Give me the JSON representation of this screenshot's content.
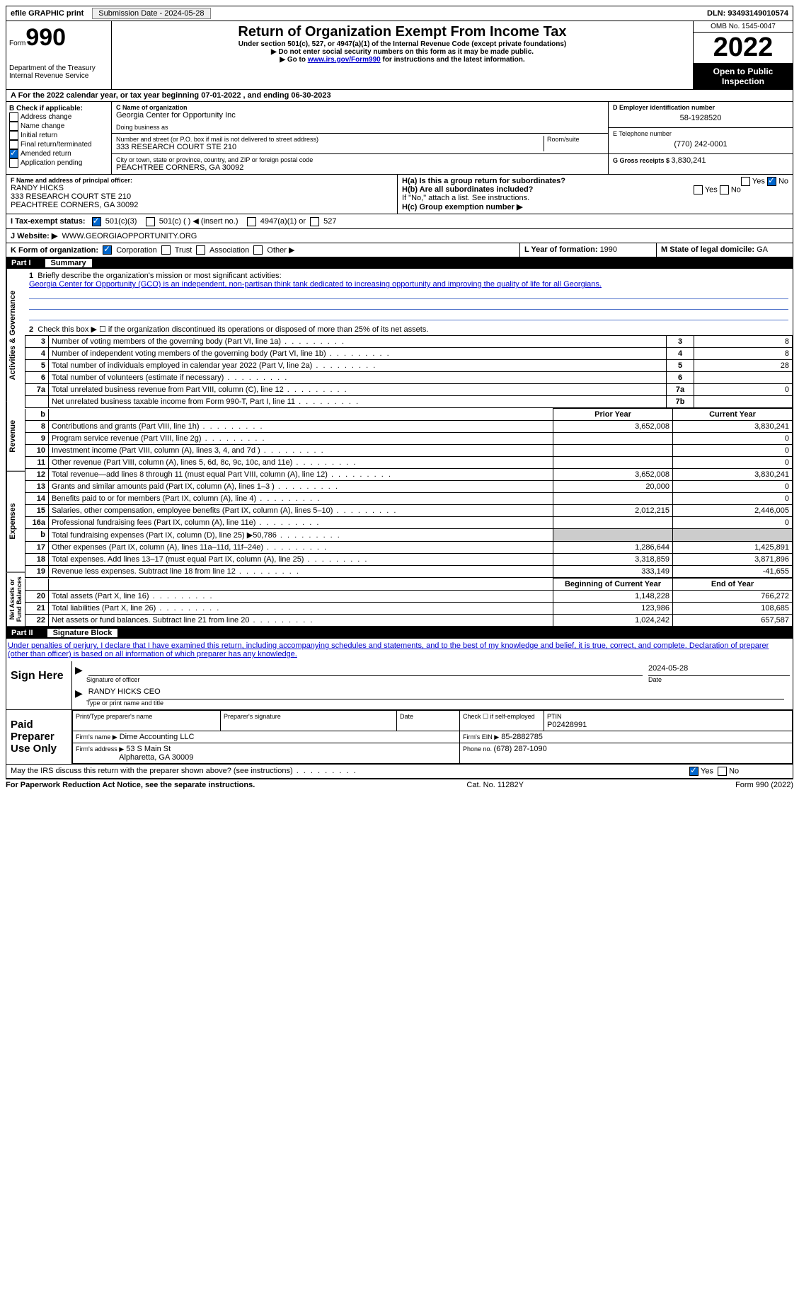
{
  "topbar": {
    "efile": "efile GRAPHIC print",
    "submission_label": "Submission Date - 2024-05-28",
    "dln_label": "DLN: 93493149010574"
  },
  "header": {
    "form_label": "Form",
    "form_number": "990",
    "dept": "Department of the Treasury",
    "irs": "Internal Revenue Service",
    "title": "Return of Organization Exempt From Income Tax",
    "subtitle": "Under section 501(c), 527, or 4947(a)(1) of the Internal Revenue Code (except private foundations)",
    "note1": "▶ Do not enter social security numbers on this form as it may be made public.",
    "note2_pre": "▶ Go to ",
    "note2_link": "www.irs.gov/Form990",
    "note2_post": " for instructions and the latest information.",
    "omb": "OMB No. 1545-0047",
    "year": "2022",
    "inspection": "Open to Public Inspection"
  },
  "rowA": {
    "text_pre": "A For the 2022 calendar year, or tax year beginning ",
    "begin": "07-01-2022",
    "mid": " , and ending ",
    "end": "06-30-2023"
  },
  "colB": {
    "header": "B Check if applicable:",
    "items": [
      "Address change",
      "Name change",
      "Initial return",
      "Final return/terminated",
      "Amended return",
      "Application pending"
    ]
  },
  "colC": {
    "name_label": "C Name of organization",
    "name": "Georgia Center for Opportunity Inc",
    "dba_label": "Doing business as",
    "street_label": "Number and street (or P.O. box if mail is not delivered to street address)",
    "room_label": "Room/suite",
    "street": "333 RESEARCH COURT STE 210",
    "city_label": "City or town, state or province, country, and ZIP or foreign postal code",
    "city": "PEACHTREE CORNERS, GA  30092"
  },
  "colD": {
    "d_label": "D Employer identification number",
    "d_value": "58-1928520",
    "e_label": "E Telephone number",
    "e_value": "(770) 242-0001",
    "g_label": "G Gross receipts $ ",
    "g_value": "3,830,241"
  },
  "rowF": {
    "f_label": "F Name and address of principal officer:",
    "f_name": "RANDY HICKS",
    "f_addr1": "333 RESEARCH COURT STE 210",
    "f_addr2": "PEACHTREE CORNERS, GA  30092",
    "ha_label": "H(a)  Is this a group return for subordinates?",
    "hb_label": "H(b)  Are all subordinates included?",
    "h_note": "If \"No,\" attach a list. See instructions.",
    "hc_label": "H(c)  Group exemption number ▶",
    "yes": "Yes",
    "no": "No"
  },
  "rowI": {
    "label": "I  Tax-exempt status:",
    "opt1": "501(c)(3)",
    "opt2": "501(c) (  ) ◀ (insert no.)",
    "opt3": "4947(a)(1) or",
    "opt4": "527"
  },
  "rowJ": {
    "label": "J  Website: ▶",
    "value": "WWW.GEORGIAOPPORTUNITY.ORG"
  },
  "rowK": {
    "label": "K Form of organization:",
    "opts": [
      "Corporation",
      "Trust",
      "Association",
      "Other ▶"
    ],
    "l_label": "L Year of formation: ",
    "l_value": "1990",
    "m_label": "M State of legal domicile: ",
    "m_value": "GA"
  },
  "part1": {
    "num": "Part I",
    "title": "Summary",
    "vlabel1": "Activities & Governance",
    "vlabel2": "Revenue",
    "vlabel3": "Expenses",
    "vlabel4": "Net Assets or Fund Balances",
    "l1_label": "Briefly describe the organization's mission or most significant activities:",
    "l1_text": "Georgia Center for Opportunity (GCO) is an independent, non-partisan think tank dedicated to increasing opportunity and improving the quality of life for all Georgians.",
    "l2": "Check this box ▶ ☐  if the organization discontinued its operations or disposed of more than 25% of its net assets.",
    "lines_ag": [
      {
        "n": "3",
        "t": "Number of voting members of the governing body (Part VI, line 1a)",
        "box": "3",
        "v": "8"
      },
      {
        "n": "4",
        "t": "Number of independent voting members of the governing body (Part VI, line 1b)",
        "box": "4",
        "v": "8"
      },
      {
        "n": "5",
        "t": "Total number of individuals employed in calendar year 2022 (Part V, line 2a)",
        "box": "5",
        "v": "28"
      },
      {
        "n": "6",
        "t": "Total number of volunteers (estimate if necessary)",
        "box": "6",
        "v": ""
      },
      {
        "n": "7a",
        "t": "Total unrelated business revenue from Part VIII, column (C), line 12",
        "box": "7a",
        "v": "0"
      },
      {
        "n": "",
        "t": "Net unrelated business taxable income from Form 990-T, Part I, line 11",
        "box": "7b",
        "v": ""
      }
    ],
    "col_prior": "Prior Year",
    "col_current": "Current Year",
    "lines_rev": [
      {
        "n": "8",
        "t": "Contributions and grants (Part VIII, line 1h)",
        "p": "3,652,008",
        "c": "3,830,241"
      },
      {
        "n": "9",
        "t": "Program service revenue (Part VIII, line 2g)",
        "p": "",
        "c": "0"
      },
      {
        "n": "10",
        "t": "Investment income (Part VIII, column (A), lines 3, 4, and 7d )",
        "p": "",
        "c": "0"
      },
      {
        "n": "11",
        "t": "Other revenue (Part VIII, column (A), lines 5, 6d, 8c, 9c, 10c, and 11e)",
        "p": "",
        "c": "0"
      },
      {
        "n": "12",
        "t": "Total revenue—add lines 8 through 11 (must equal Part VIII, column (A), line 12)",
        "p": "3,652,008",
        "c": "3,830,241"
      }
    ],
    "lines_exp": [
      {
        "n": "13",
        "t": "Grants and similar amounts paid (Part IX, column (A), lines 1–3 )",
        "p": "20,000",
        "c": "0"
      },
      {
        "n": "14",
        "t": "Benefits paid to or for members (Part IX, column (A), line 4)",
        "p": "",
        "c": "0"
      },
      {
        "n": "15",
        "t": "Salaries, other compensation, employee benefits (Part IX, column (A), lines 5–10)",
        "p": "2,012,215",
        "c": "2,446,005"
      },
      {
        "n": "16a",
        "t": "Professional fundraising fees (Part IX, column (A), line 11e)",
        "p": "",
        "c": "0"
      },
      {
        "n": "b",
        "t": "Total fundraising expenses (Part IX, column (D), line 25) ▶50,786",
        "p": "shade",
        "c": "shade"
      },
      {
        "n": "17",
        "t": "Other expenses (Part IX, column (A), lines 11a–11d, 11f–24e)",
        "p": "1,286,644",
        "c": "1,425,891"
      },
      {
        "n": "18",
        "t": "Total expenses. Add lines 13–17 (must equal Part IX, column (A), line 25)",
        "p": "3,318,859",
        "c": "3,871,896"
      },
      {
        "n": "19",
        "t": "Revenue less expenses. Subtract line 18 from line 12",
        "p": "333,149",
        "c": "-41,655"
      }
    ],
    "col_begin": "Beginning of Current Year",
    "col_end": "End of Year",
    "lines_net": [
      {
        "n": "20",
        "t": "Total assets (Part X, line 16)",
        "p": "1,148,228",
        "c": "766,272"
      },
      {
        "n": "21",
        "t": "Total liabilities (Part X, line 26)",
        "p": "123,986",
        "c": "108,685"
      },
      {
        "n": "22",
        "t": "Net assets or fund balances. Subtract line 21 from line 20",
        "p": "1,024,242",
        "c": "657,587"
      }
    ]
  },
  "part2": {
    "num": "Part II",
    "title": "Signature Block",
    "declaration": "Under penalties of perjury, I declare that I have examined this return, including accompanying schedules and statements, and to the best of my knowledge and belief, it is true, correct, and complete. Declaration of preparer (other than officer) is based on all information of which preparer has any knowledge.",
    "sign_here": "Sign Here",
    "sig_officer": "Signature of officer",
    "sig_date": "2024-05-28",
    "date_label": "Date",
    "officer_name": "RANDY HICKS CEO",
    "type_name": "Type or print name and title",
    "paid_prep": "Paid Preparer Use Only",
    "pp_name_label": "Print/Type preparer's name",
    "pp_sig_label": "Preparer's signature",
    "pp_date_label": "Date",
    "pp_check": "Check ☐ if self-employed",
    "ptin_label": "PTIN",
    "ptin": "P02428991",
    "firm_name_label": "Firm's name    ▶",
    "firm_name": "Dime Accounting LLC",
    "firm_ein_label": "Firm's EIN ▶",
    "firm_ein": "85-2882785",
    "firm_addr_label": "Firm's address ▶",
    "firm_addr1": "53 S Main St",
    "firm_addr2": "Alpharetta, GA  30009",
    "phone_label": "Phone no. ",
    "phone": "(678) 287-1090",
    "discuss": "May the IRS discuss this return with the preparer shown above? (see instructions)",
    "yes": "Yes",
    "no": "No"
  },
  "footer": {
    "left": "For Paperwork Reduction Act Notice, see the separate instructions.",
    "mid": "Cat. No. 11282Y",
    "right": "Form 990 (2022)"
  }
}
